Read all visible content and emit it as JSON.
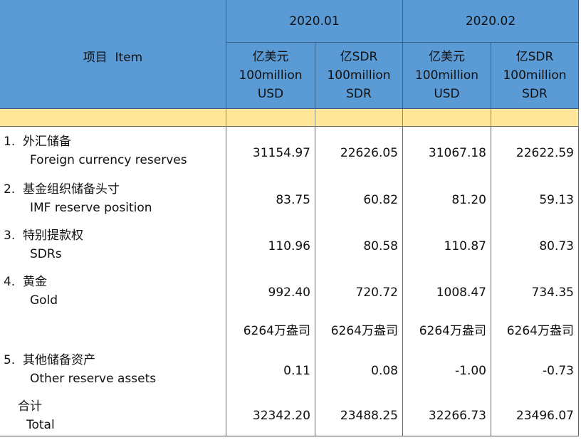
{
  "header": {
    "item": "项目  Item",
    "periods": [
      "2020.01",
      "2020.02"
    ],
    "units": [
      [
        "亿美元",
        "100million",
        "USD"
      ],
      [
        "亿SDR",
        "100million",
        "SDR"
      ],
      [
        "亿美元",
        "100million",
        "USD"
      ],
      [
        "亿SDR",
        "100million",
        "SDR"
      ]
    ]
  },
  "rows": [
    {
      "label_cn": "1.  外汇储备",
      "label_en": "Foreign currency reserves",
      "values": [
        "31154.97",
        "22626.05",
        "31067.18",
        "22622.59"
      ]
    },
    {
      "label_cn": "2.  基金组织储备头寸",
      "label_en": "IMF reserve position",
      "values": [
        "83.75",
        "60.82",
        "81.20",
        "59.13"
      ]
    },
    {
      "label_cn": "3.  特别提款权",
      "label_en": "SDRs",
      "values": [
        "110.96",
        "80.58",
        "110.87",
        "80.73"
      ]
    },
    {
      "label_cn": "4.  黄金",
      "label_en": "Gold",
      "values": [
        "992.40",
        "720.72",
        "1008.47",
        "734.35"
      ]
    },
    {
      "values": [
        "6264万盎司",
        "6264万盎司",
        "6264万盎司",
        "6264万盎司"
      ]
    },
    {
      "label_cn": "5.  其他储备资产",
      "label_en": "Other reserve assets",
      "values": [
        "0.11",
        "0.08",
        "-1.00",
        "-0.73"
      ]
    },
    {
      "label_cn": "合计",
      "label_en": "Total",
      "values": [
        "32342.20",
        "23488.25",
        "32266.73",
        "23496.07"
      ]
    }
  ]
}
